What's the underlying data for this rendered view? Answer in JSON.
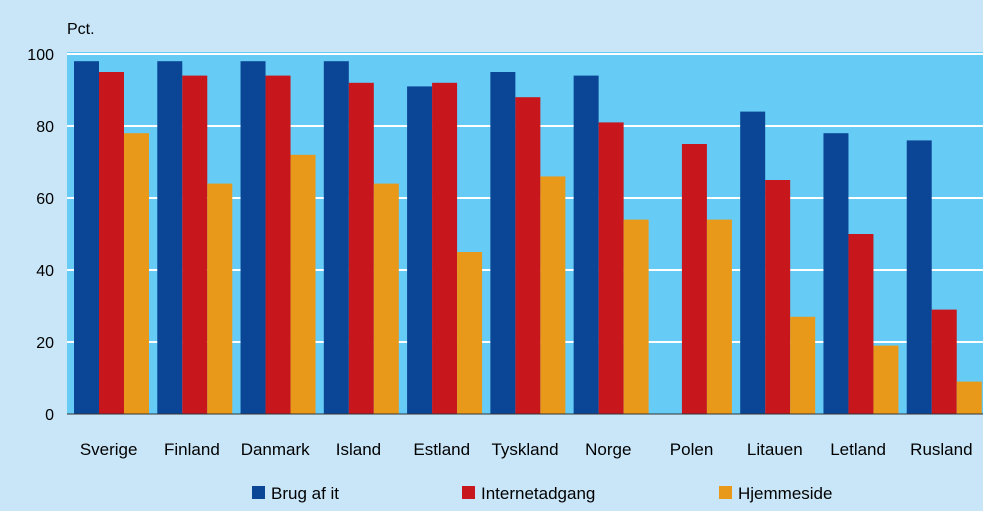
{
  "chart_data": {
    "type": "bar",
    "ylabel": "Pct.",
    "ylim": [
      0,
      100
    ],
    "yticks": [
      0,
      20,
      40,
      60,
      80,
      100
    ],
    "grid": true,
    "legend_position": "bottom",
    "categories": [
      "Sverige",
      "Finland",
      "Danmark",
      "Island",
      "Estland",
      "Tyskland",
      "Norge",
      "Polen",
      "Litauen",
      "Letland",
      "Rusland"
    ],
    "series": [
      {
        "name": "Brug af it",
        "color": "#0b4596",
        "values": [
          98,
          98,
          98,
          98,
          91,
          95,
          94,
          null,
          84,
          78,
          76
        ]
      },
      {
        "name": "Internetadgang",
        "color": "#c8161d",
        "values": [
          95,
          94,
          94,
          92,
          92,
          88,
          81,
          75,
          65,
          50,
          29
        ]
      },
      {
        "name": "Hjemmeside",
        "color": "#e8991a",
        "values": [
          78,
          64,
          72,
          64,
          45,
          66,
          54,
          54,
          27,
          19,
          9
        ]
      }
    ],
    "colors": {
      "background": "#c8e6f8",
      "plot_area": "#66ccf5",
      "grid": "#ffffff"
    }
  }
}
